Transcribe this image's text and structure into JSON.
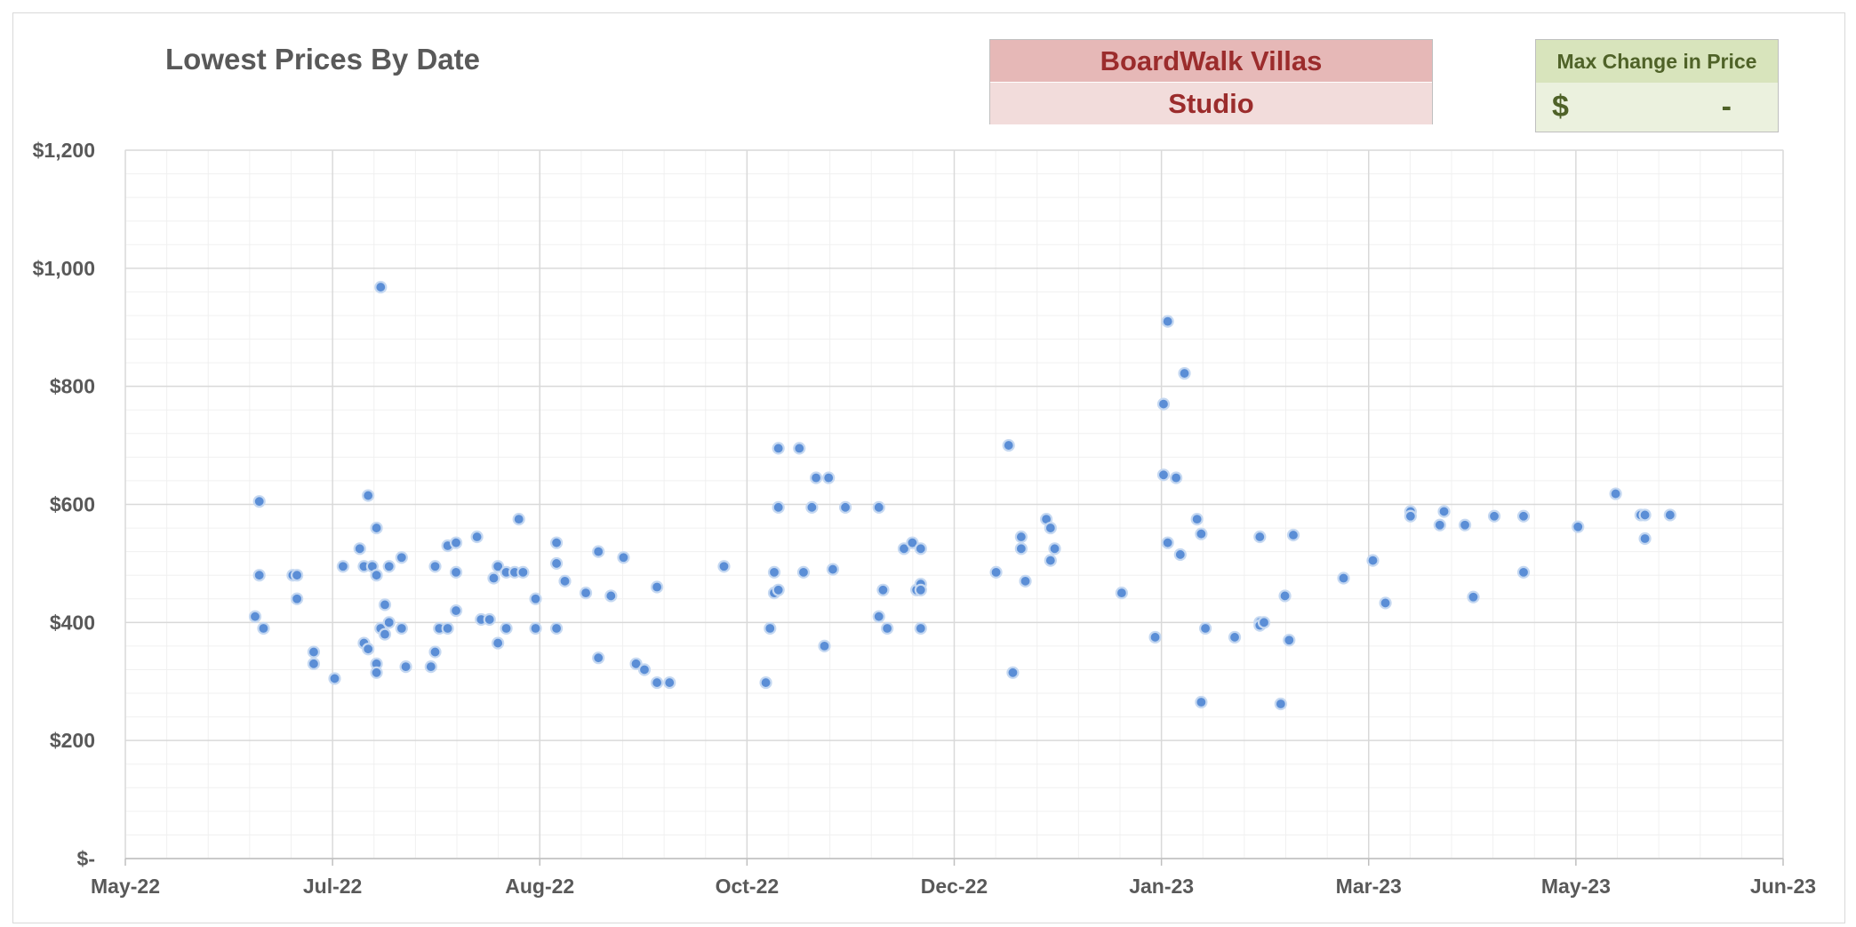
{
  "header": {
    "title": "Lowest Prices By Date",
    "resort": "BoardWalk Villas",
    "room_type": "Studio",
    "change_label": "Max Change in Price",
    "change_currency": "$",
    "change_value": "-"
  },
  "colors": {
    "marker_fill": "#5b8ed6",
    "marker_stroke": "#c5d8f1",
    "resort_text": "#9b2c2c",
    "resort_bg_top": "#e6b8b7",
    "resort_bg_bottom": "#f2dcdb",
    "change_text": "#4f6228",
    "change_bg_head": "#d8e4bc",
    "change_bg_body": "#ebf1de"
  },
  "chart_data": {
    "type": "scatter",
    "title": "Lowest Prices By Date",
    "xlabel": "",
    "ylabel": "",
    "xlim": [
      "2022-05-01",
      "2023-06-01"
    ],
    "ylim": [
      0,
      1200
    ],
    "grid": true,
    "legend": "none",
    "x_ticks": [
      "May-22",
      "Jul-22",
      "Aug-22",
      "Oct-22",
      "Dec-22",
      "Jan-23",
      "Mar-23",
      "May-23",
      "Jun-23"
    ],
    "y_ticks": [
      "$-",
      "$200",
      "$400",
      "$600",
      "$800",
      "$1,000",
      "$1,200"
    ],
    "series": [
      {
        "points": [
          [
            "2022-06-01",
            410
          ],
          [
            "2022-06-02",
            605
          ],
          [
            "2022-06-02",
            480
          ],
          [
            "2022-06-03",
            390
          ],
          [
            "2022-06-10",
            480
          ],
          [
            "2022-06-11",
            440
          ],
          [
            "2022-06-11",
            480
          ],
          [
            "2022-06-15",
            350
          ],
          [
            "2022-06-15",
            330
          ],
          [
            "2022-06-20",
            305
          ],
          [
            "2022-06-22",
            495
          ],
          [
            "2022-06-26",
            525
          ],
          [
            "2022-06-27",
            365
          ],
          [
            "2022-06-27",
            495
          ],
          [
            "2022-06-28",
            615
          ],
          [
            "2022-06-28",
            355
          ],
          [
            "2022-06-29",
            495
          ],
          [
            "2022-06-30",
            560
          ],
          [
            "2022-06-30",
            480
          ],
          [
            "2022-06-30",
            330
          ],
          [
            "2022-06-30",
            315
          ],
          [
            "2022-07-01",
            390
          ],
          [
            "2022-07-01",
            968
          ],
          [
            "2022-07-02",
            430
          ],
          [
            "2022-07-02",
            380
          ],
          [
            "2022-07-03",
            400
          ],
          [
            "2022-07-03",
            495
          ],
          [
            "2022-07-06",
            510
          ],
          [
            "2022-07-06",
            390
          ],
          [
            "2022-07-07",
            325
          ],
          [
            "2022-07-13",
            325
          ],
          [
            "2022-07-14",
            495
          ],
          [
            "2022-07-14",
            350
          ],
          [
            "2022-07-15",
            390
          ],
          [
            "2022-07-17",
            530
          ],
          [
            "2022-07-17",
            390
          ],
          [
            "2022-07-19",
            535
          ],
          [
            "2022-07-19",
            485
          ],
          [
            "2022-07-19",
            420
          ],
          [
            "2022-07-24",
            545
          ],
          [
            "2022-07-25",
            405
          ],
          [
            "2022-07-27",
            405
          ],
          [
            "2022-07-28",
            475
          ],
          [
            "2022-07-29",
            495
          ],
          [
            "2022-07-29",
            365
          ],
          [
            "2022-07-31",
            485
          ],
          [
            "2022-07-31",
            390
          ],
          [
            "2022-08-02",
            485
          ],
          [
            "2022-08-03",
            575
          ],
          [
            "2022-08-04",
            485
          ],
          [
            "2022-08-07",
            440
          ],
          [
            "2022-08-07",
            390
          ],
          [
            "2022-08-12",
            535
          ],
          [
            "2022-08-12",
            500
          ],
          [
            "2022-08-12",
            390
          ],
          [
            "2022-08-14",
            470
          ],
          [
            "2022-08-19",
            450
          ],
          [
            "2022-08-22",
            340
          ],
          [
            "2022-08-22",
            520
          ],
          [
            "2022-08-25",
            445
          ],
          [
            "2022-08-28",
            510
          ],
          [
            "2022-08-31",
            330
          ],
          [
            "2022-09-02",
            320
          ],
          [
            "2022-09-05",
            460
          ],
          [
            "2022-09-05",
            298
          ],
          [
            "2022-09-08",
            298
          ],
          [
            "2022-09-21",
            495
          ],
          [
            "2022-10-01",
            298
          ],
          [
            "2022-10-02",
            390
          ],
          [
            "2022-10-03",
            485
          ],
          [
            "2022-10-03",
            450
          ],
          [
            "2022-10-04",
            455
          ],
          [
            "2022-10-04",
            695
          ],
          [
            "2022-10-04",
            595
          ],
          [
            "2022-10-09",
            695
          ],
          [
            "2022-10-10",
            485
          ],
          [
            "2022-10-12",
            595
          ],
          [
            "2022-10-13",
            645
          ],
          [
            "2022-10-15",
            360
          ],
          [
            "2022-10-16",
            645
          ],
          [
            "2022-10-17",
            490
          ],
          [
            "2022-10-20",
            595
          ],
          [
            "2022-10-28",
            410
          ],
          [
            "2022-10-28",
            595
          ],
          [
            "2022-10-29",
            455
          ],
          [
            "2022-10-30",
            390
          ],
          [
            "2022-11-03",
            525
          ],
          [
            "2022-11-05",
            535
          ],
          [
            "2022-11-06",
            455
          ],
          [
            "2022-11-07",
            525
          ],
          [
            "2022-11-07",
            465
          ],
          [
            "2022-11-07",
            455
          ],
          [
            "2022-11-07",
            390
          ],
          [
            "2022-11-25",
            485
          ],
          [
            "2022-11-28",
            700
          ],
          [
            "2022-11-29",
            315
          ],
          [
            "2022-12-01",
            545
          ],
          [
            "2022-12-01",
            525
          ],
          [
            "2022-12-02",
            470
          ],
          [
            "2022-12-07",
            575
          ],
          [
            "2022-12-08",
            560
          ],
          [
            "2022-12-08",
            505
          ],
          [
            "2022-12-09",
            525
          ],
          [
            "2022-12-25",
            450
          ],
          [
            "2023-01-02",
            375
          ],
          [
            "2023-01-04",
            770
          ],
          [
            "2023-01-04",
            650
          ],
          [
            "2023-01-05",
            910
          ],
          [
            "2023-01-05",
            535
          ],
          [
            "2023-01-07",
            645
          ],
          [
            "2023-01-08",
            515
          ],
          [
            "2023-01-09",
            822
          ],
          [
            "2023-01-12",
            575
          ],
          [
            "2023-01-13",
            550
          ],
          [
            "2023-01-13",
            265
          ],
          [
            "2023-01-14",
            390
          ],
          [
            "2023-01-21",
            375
          ],
          [
            "2023-01-27",
            400
          ],
          [
            "2023-01-27",
            395
          ],
          [
            "2023-01-27",
            545
          ],
          [
            "2023-01-28",
            400
          ],
          [
            "2023-02-01",
            262
          ],
          [
            "2023-02-02",
            445
          ],
          [
            "2023-02-03",
            370
          ],
          [
            "2023-02-04",
            548
          ],
          [
            "2023-02-16",
            475
          ],
          [
            "2023-02-23",
            505
          ],
          [
            "2023-02-26",
            433
          ],
          [
            "2023-03-04",
            588
          ],
          [
            "2023-03-04",
            580
          ],
          [
            "2023-03-11",
            565
          ],
          [
            "2023-03-12",
            588
          ],
          [
            "2023-03-17",
            565
          ],
          [
            "2023-03-19",
            443
          ],
          [
            "2023-03-24",
            580
          ],
          [
            "2023-03-31",
            580
          ],
          [
            "2023-03-31",
            485
          ],
          [
            "2023-04-13",
            562
          ],
          [
            "2023-04-22",
            618
          ],
          [
            "2023-04-28",
            582
          ],
          [
            "2023-04-29",
            582
          ],
          [
            "2023-04-29",
            542
          ],
          [
            "2023-05-05",
            582
          ]
        ]
      }
    ]
  }
}
